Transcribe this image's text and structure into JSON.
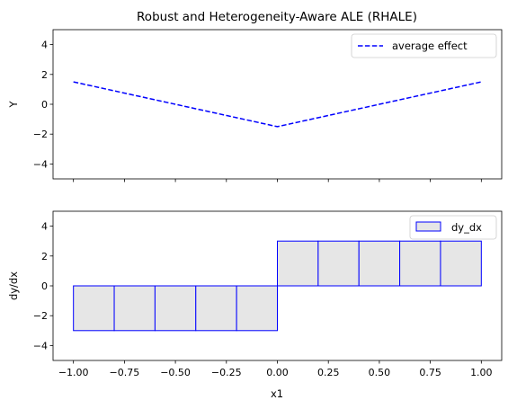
{
  "chart_data": [
    {
      "type": "line",
      "title": "Robust and Heterogeneity-Aware ALE (RHALE)",
      "xlabel": "",
      "ylabel": "Y",
      "xlim": [
        -1.1,
        1.1
      ],
      "ylim": [
        -5,
        5
      ],
      "xticks": [
        -1.0,
        -0.75,
        -0.5,
        -0.25,
        0.0,
        0.25,
        0.5,
        0.75,
        1.0
      ],
      "yticks": [
        4,
        2,
        0,
        -2,
        -4
      ],
      "ytick_labels": [
        "4",
        "2",
        "0",
        "−2",
        "−4"
      ],
      "grid": false,
      "legend_position": "top-right",
      "series": [
        {
          "name": "average effect",
          "color": "#0000ff",
          "style": "dashed",
          "x": [
            -1.0,
            0.0,
            1.0
          ],
          "y": [
            1.5,
            -1.5,
            1.5
          ]
        }
      ]
    },
    {
      "type": "bar",
      "title": "",
      "xlabel": "x1",
      "ylabel": "dy/dx",
      "xlim": [
        -1.1,
        1.1
      ],
      "ylim": [
        -5,
        5
      ],
      "xticks": [
        -1.0,
        -0.75,
        -0.5,
        -0.25,
        0.0,
        0.25,
        0.5,
        0.75,
        1.0
      ],
      "xtick_labels": [
        "−1.00",
        "−0.75",
        "−0.50",
        "−0.25",
        "0.00",
        "0.25",
        "0.50",
        "0.75",
        "1.00"
      ],
      "yticks": [
        4,
        2,
        0,
        -2,
        -4
      ],
      "ytick_labels": [
        "4",
        "2",
        "0",
        "−2",
        "−4"
      ],
      "grid": false,
      "legend_position": "top-right",
      "series": [
        {
          "name": "dy_dx",
          "face_color": "#e6e6e6",
          "edge_color": "#0000ff",
          "bins": [
            {
              "x0": -1.0,
              "x1": -0.8,
              "value": -3
            },
            {
              "x0": -0.8,
              "x1": -0.6,
              "value": -3
            },
            {
              "x0": -0.6,
              "x1": -0.4,
              "value": -3
            },
            {
              "x0": -0.4,
              "x1": -0.2,
              "value": -3
            },
            {
              "x0": -0.2,
              "x1": 0.0,
              "value": -3
            },
            {
              "x0": 0.0,
              "x1": 0.2,
              "value": 3
            },
            {
              "x0": 0.2,
              "x1": 0.4,
              "value": 3
            },
            {
              "x0": 0.4,
              "x1": 0.6,
              "value": 3
            },
            {
              "x0": 0.6,
              "x1": 0.8,
              "value": 3
            },
            {
              "x0": 0.8,
              "x1": 1.0,
              "value": 3
            }
          ]
        }
      ]
    }
  ]
}
